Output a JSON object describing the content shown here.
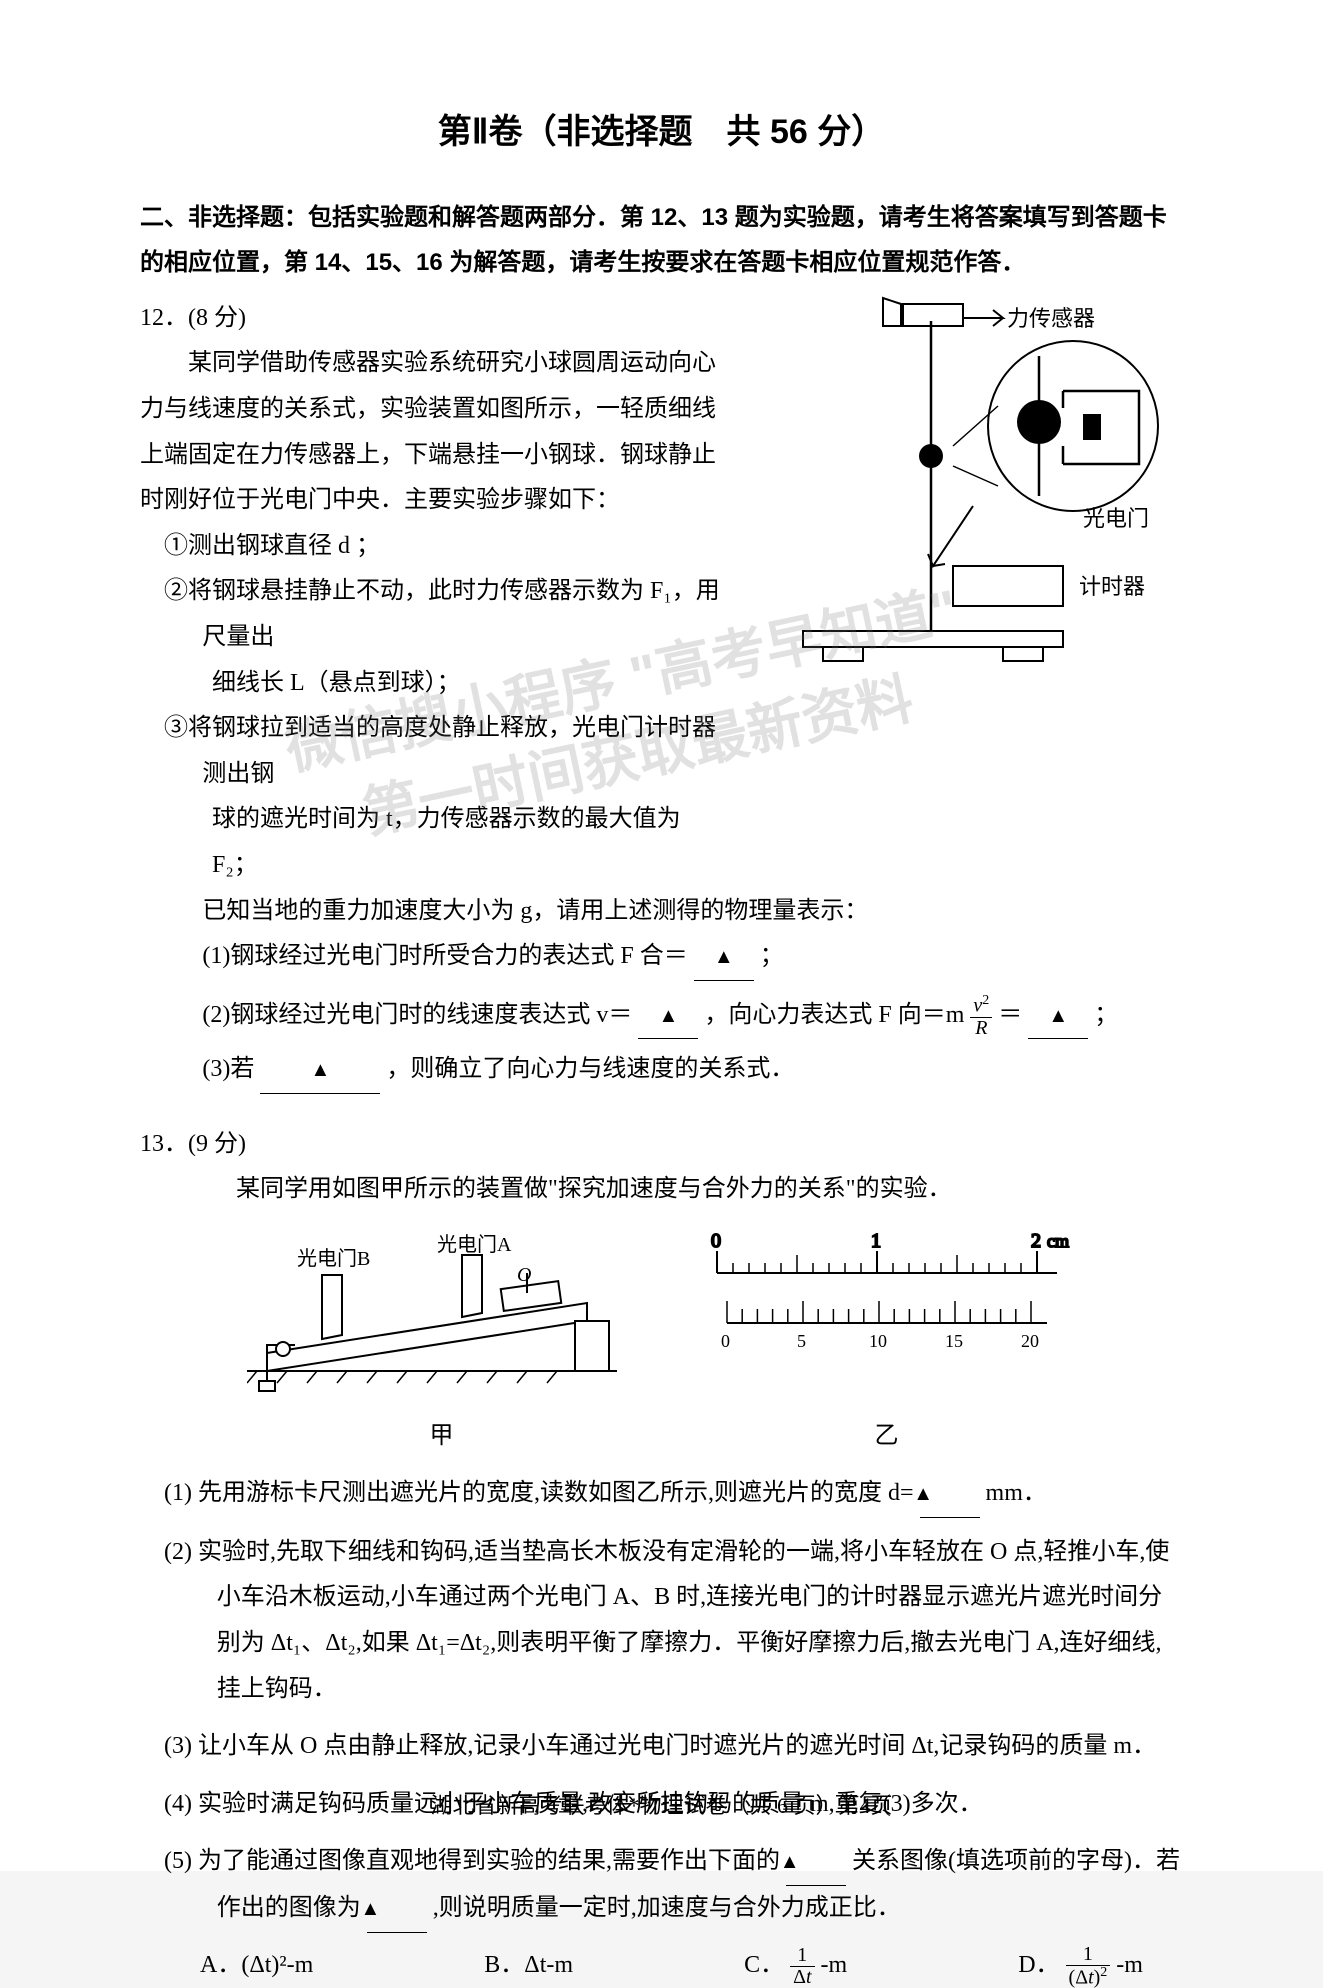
{
  "title": "第Ⅱ卷（非选择题　共 56 分）",
  "section_head": "二、非选择题：包括实验题和解答题两部分．第 12、13 题为实验题，请考生将答案填写到答题卡的相应位置，第 14、15、16 为解答题，请考生按要求在答题卡相应位置规范作答．",
  "q12": {
    "num": "12．(8 分)",
    "intro": "某同学借助传感器实验系统研究小球圆周运动向心力与线速度的关系式，实验装置如图所示，一轻质细线上端固定在力传感器上，下端悬挂一小钢球．钢球静止时刚好位于光电门中央．主要实验步骤如下：",
    "step1": "①测出钢球直径 d ；",
    "step2": "②将钢球悬挂静止不动，此时力传感器示数为 F₁，用尺量出",
    "step2b": "细线长 L（悬点到球）；",
    "step3": "③将钢球拉到适当的高度处静止释放，光电门计时器测出钢",
    "step3b": "球的遮光时间为 t，力传感器示数的最大值为 F₂；",
    "known": "已知当地的重力加速度大小为 g，请用上述测得的物理量表示：",
    "p1_pre": "(1)钢球经过光电门时所受合力的表达式 F 合＝",
    "p1_post": "；",
    "p2_pre": "(2)钢球经过光电门时的线速度表达式 v＝",
    "p2_mid": "，向心力表达式 F 向＝m",
    "p2_mid2": "＝",
    "p2_post": "；",
    "p3_pre": "(3)若",
    "p3_post": "，则确立了向心力与线速度的关系式．",
    "labels": {
      "force_sensor": "力传感器",
      "photogate": "光电门",
      "timer": "计时器"
    }
  },
  "q13": {
    "num": "13．(9 分)",
    "intro": "某同学用如图甲所示的装置做\"探究加速度与合外力的关系\"的实验．",
    "gateA": "光电门A",
    "gateB": "光电门B",
    "O": "O",
    "ruler_cm": "cm",
    "fig1": "甲",
    "fig2": "乙",
    "p1_pre": "(1) 先用游标卡尺测出遮光片的宽度,读数如图乙所示,则遮光片的宽度 d=",
    "p1_post": "mm．",
    "p2": "(2) 实验时,先取下细线和钩码,适当垫高长木板没有定滑轮的一端,将小车轻放在 O 点,轻推小车,使小车沿木板运动,小车通过两个光电门 A、B 时,连接光电门的计时器显示遮光片遮光时间分别为 Δt₁、Δt₂,如果 Δt₁=Δt₂,则表明平衡了摩擦力．平衡好摩擦力后,撤去光电门 A,连好细线,挂上钩码．",
    "p3": "(3) 让小车从 O 点由静止释放,记录小车通过光电门时遮光片的遮光时间 Δt,记录钩码的质量 m．",
    "p4": "(4) 实验时满足钩码质量远小于小车质量,改变所挂钩码的质量 m,重复(3)多次．",
    "p5_pre": "(5) 为了能通过图像直观地得到实验的结果,需要作出下面的",
    "p5_mid": "关系图像(填选项前的字母)．若作出的图像为",
    "p5_post": ",则说明质量一定时,加速度与合外力成正比．",
    "optA": "A．(Δt)²-m",
    "optB": "B．Δt-m",
    "optC_pre": "C．",
    "optC_post": "-m",
    "optD_pre": "D．",
    "optD_post": "-m"
  },
  "watermark": {
    "line1": "微信搜小程序 \"高考早知道\"",
    "line2": "第一时间获取最新资料"
  },
  "footer": "湖北省新高考联考体*物理试卷（共 6 页）第4页",
  "blank_tri": "▲",
  "colors": {
    "text": "#000000",
    "background": "#ffffff",
    "watermark": "rgba(120,120,120,0.22)"
  }
}
